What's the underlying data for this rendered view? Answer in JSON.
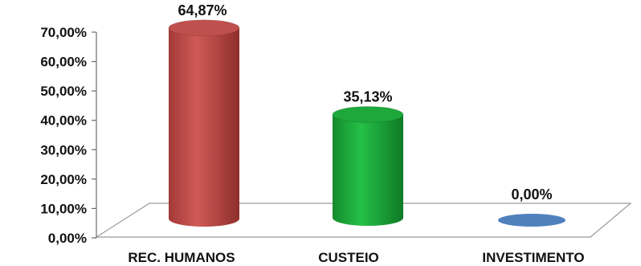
{
  "chart_data": {
    "type": "bar",
    "style": "3d-cylinder",
    "categories": [
      "REC. HUMANOS",
      "CUSTEIO",
      "INVESTIMENTO"
    ],
    "values": [
      64.87,
      35.13,
      0.0
    ],
    "data_labels": [
      "64,87%",
      "35,13%",
      "0,00%"
    ],
    "colors": [
      "#c0504d",
      "#1ea83c",
      "#4f81bd"
    ],
    "ylim": [
      0,
      70
    ],
    "yticks": [
      0,
      10,
      20,
      30,
      40,
      50,
      60,
      70
    ],
    "ytick_labels": [
      "0,00%",
      "10,00%",
      "20,00%",
      "30,00%",
      "40,00%",
      "50,00%",
      "60,00%",
      "70,00%"
    ],
    "title": "",
    "xlabel": "",
    "ylabel": "",
    "grid": false,
    "legend": false
  }
}
